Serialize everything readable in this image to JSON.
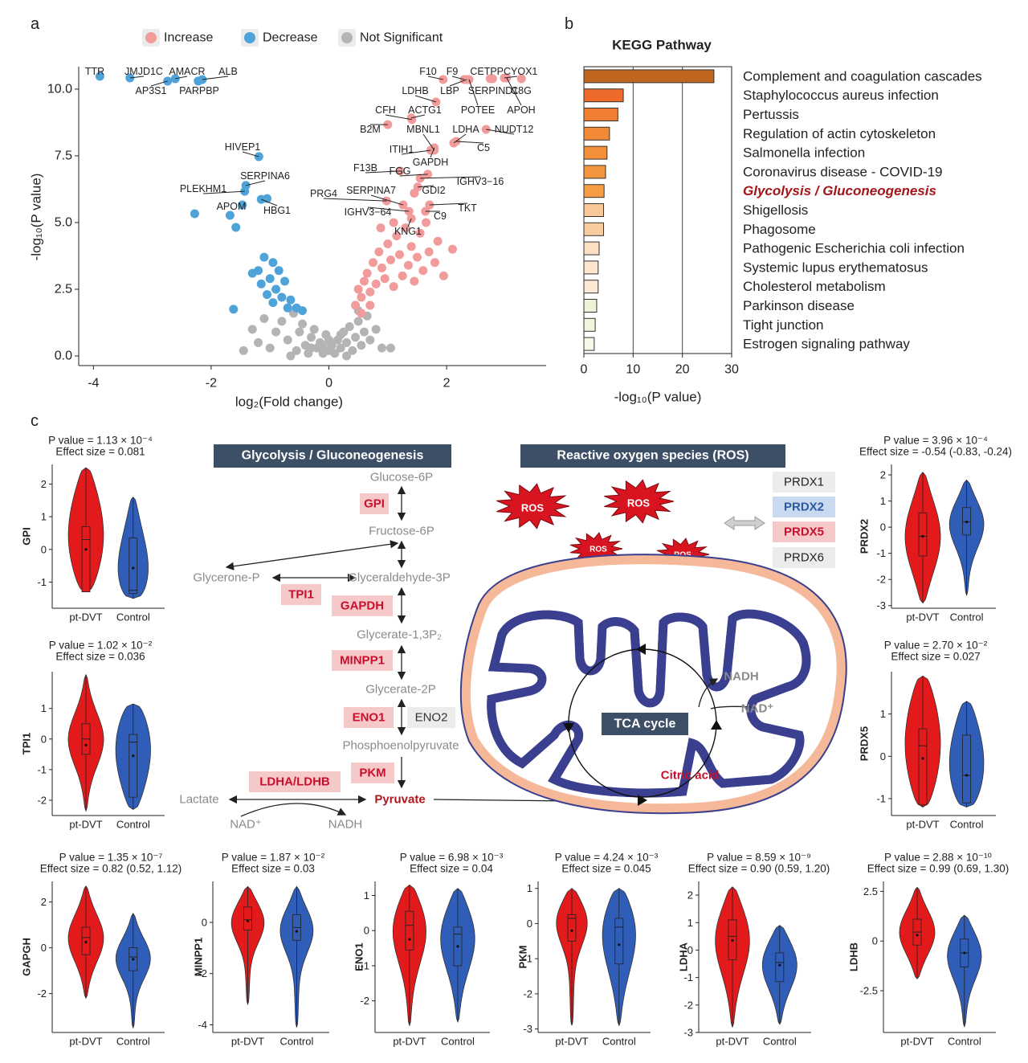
{
  "panel_labels": [
    "a",
    "b",
    "c"
  ],
  "chart_data": [
    {
      "type": "scatter",
      "xlabel": "log₂(Fold change)",
      "ylabel": "-log₁₀(P value)",
      "xlim": [
        -4.25,
        3.69
      ],
      "ylim": [
        -0.36,
        10.84
      ],
      "xticks": [
        -4,
        -2,
        0,
        2
      ],
      "yticks": [
        {
          "value": 0,
          "label": "0.0"
        },
        {
          "value": 2.5,
          "label": "2.5"
        },
        {
          "value": 5,
          "label": "5.0"
        },
        {
          "value": 7.5,
          "label": "7.5"
        },
        {
          "value": 10,
          "label": "10.0"
        }
      ],
      "legend": "top",
      "grid": false,
      "series": [
        {
          "name": "Increase",
          "color": "#f29b9b",
          "x": [
            1.94,
            2.3,
            2.34,
            2.38,
            2.74,
            2.78,
            2.98,
            3.02,
            3.27,
            1.82,
            1.41,
            1.4,
            1.0,
            1.79,
            2.12,
            2.67,
            2.16,
            1.73,
            1.79,
            1.21,
            1.68,
            1.55,
            1.51,
            0.98,
            1.26,
            1.71,
            1.36,
            1.64,
            1.4,
            0.45,
            0.5,
            0.55,
            0.6,
            0.65,
            0.7,
            0.75,
            0.8,
            0.85,
            0.9,
            0.95,
            1.0,
            1.05,
            1.1,
            1.15,
            1.2,
            1.25,
            1.3,
            1.35,
            1.4,
            1.45,
            1.5,
            1.55,
            1.6,
            1.65,
            1.7,
            1.8,
            1.85,
            1.95,
            2.1,
            0.55,
            0.7,
            1.1,
            0.88,
            1.45
          ],
          "values": [
            10.36,
            10.36,
            10.36,
            10.36,
            10.39,
            10.39,
            10.42,
            10.42,
            10.39,
            9.52,
            8.86,
            8.92,
            8.67,
            7.71,
            7.98,
            8.49,
            8.04,
            7.71,
            7.8,
            6.93,
            6.81,
            6.66,
            6.33,
            5.81,
            5.66,
            5.66,
            5.42,
            5.42,
            5.15,
            1.9,
            2.5,
            2.2,
            2.8,
            3.1,
            2.4,
            3.5,
            2.7,
            3.9,
            3.3,
            2.9,
            4.2,
            3.6,
            2.6,
            4.5,
            3.8,
            3.0,
            4.8,
            3.4,
            4.1,
            2.8,
            3.7,
            4.6,
            3.2,
            5.0,
            3.9,
            3.5,
            4.3,
            3.0,
            4.0,
            1.6,
            1.9,
            5.0,
            4.8,
            6.1
          ],
          "labels": [
            "F10",
            "F9",
            "LBP",
            "POTEE",
            "CETP",
            "SERPIND1",
            "PCYOX1",
            "APOH",
            "C8G",
            "LDHB",
            "CFH",
            "ACTG1",
            "B2M",
            "MBNL1",
            "LDHA",
            "NUDT12",
            "C5",
            "ITIH1",
            "GAPDH",
            "F13B",
            "FGG",
            "IGHV3−16",
            "GDI2",
            "PRG4",
            "SERPINA7",
            "TKT",
            "IGHV3−64",
            "C9",
            "KNG1",
            null,
            null,
            null,
            null,
            null,
            null,
            null,
            null,
            null,
            null,
            null,
            null,
            null,
            null,
            null,
            null,
            null,
            null,
            null,
            null,
            null,
            null,
            null,
            null,
            null,
            null,
            null,
            null,
            null,
            null,
            null,
            null,
            null,
            null,
            null
          ]
        },
        {
          "name": "Decrease",
          "color": "#4ea3d8",
          "x": [
            -3.89,
            -3.38,
            -2.61,
            -2.15,
            -2.74,
            -2.22,
            -1.19,
            -1.41,
            -1.43,
            -1.47,
            -1.15,
            -2.28,
            -1.68,
            -1.58,
            -1.62,
            -1.1,
            -0.95,
            -0.85,
            -1.2,
            -1.0,
            -0.75,
            -0.9,
            -1.3,
            -0.8,
            -0.65,
            -0.55,
            -0.95,
            -1.05,
            -0.7,
            -0.45,
            -1.15,
            -1.05
          ],
          "values": [
            10.48,
            10.42,
            10.39,
            10.36,
            10.3,
            10.3,
            7.47,
            6.39,
            6.17,
            5.66,
            5.87,
            5.33,
            5.27,
            4.82,
            1.75,
            3.7,
            3.5,
            3.2,
            3.2,
            2.9,
            2.8,
            2.5,
            3.1,
            2.2,
            2.1,
            1.8,
            2.0,
            2.3,
            1.8,
            1.7,
            2.7,
            5.9
          ],
          "labels": [
            "TTR",
            "JMJD1C",
            "AMACR",
            "ALB",
            "AP3S1",
            "PARPBP",
            "HIVEP1",
            "SERPINA6",
            "PLEKHM1",
            "APOM",
            "HBG1",
            null,
            null,
            null,
            null,
            null,
            null,
            null,
            null,
            null,
            null,
            null,
            null,
            null,
            null,
            null,
            null,
            null,
            null,
            null,
            null,
            null
          ]
        },
        {
          "name": "Not Significant",
          "color": "#b4b4b4",
          "x": [
            -1.2,
            -1.0,
            -0.9,
            -0.8,
            -0.7,
            -0.6,
            -0.55,
            -0.5,
            -0.45,
            -0.4,
            -0.35,
            -0.3,
            -0.25,
            -0.2,
            -0.15,
            -0.1,
            -0.05,
            0,
            0.05,
            0.1,
            0.15,
            0.2,
            0.25,
            0.3,
            0.35,
            0.4,
            0.45,
            0.5,
            0.55,
            0.6,
            0.65,
            0.7,
            0.8,
            0.9,
            -1.3,
            -0.65,
            0.0,
            -0.3,
            0.2,
            -0.1,
            0.3,
            1.05,
            -1.45,
            -1.1,
            0.5
          ],
          "values": [
            0.5,
            0.3,
            0.9,
            1.3,
            0.6,
            1.6,
            0.2,
            0.9,
            1.2,
            0.4,
            0.1,
            0.7,
            1.0,
            0.3,
            0.5,
            0.1,
            0.8,
            0.2,
            0.4,
            0.1,
            0.6,
            0.3,
            0.9,
            0.5,
            1.1,
            0.2,
            0.7,
            1.3,
            0.4,
            0.9,
            1.5,
            0.6,
            1.0,
            0.3,
            1.0,
            0.0,
            0.6,
            0.3,
            0.8,
            0.4,
            0.0,
            0.3,
            0.2,
            1.4,
            1.7
          ]
        }
      ]
    },
    {
      "type": "barh",
      "title": "KEGG Pathway",
      "xlabel": "-log₁₀(P value)",
      "xlim": [
        0,
        30
      ],
      "xticks": [
        0,
        10,
        20,
        30
      ],
      "grid": true,
      "categories": [
        "Complement and coagulation cascades",
        "Staphylococcus aureus infection",
        "Pertussis",
        "Regulation of actin cytoskeleton",
        "Salmonella infection",
        "Coronavirus disease - COVID-19",
        "Glycolysis / Gluconeogenesis",
        "Shigellosis",
        "Phagosome",
        "Pathogenic Escherichia coli infection",
        "Systemic lupus erythematosus",
        "Cholesterol metabolism",
        "Parkinson disease",
        "Tight junction",
        "Estrogen signaling pathway"
      ],
      "values": [
        26.4,
        8.0,
        6.9,
        5.2,
        4.7,
        4.4,
        4.1,
        4.0,
        4.0,
        3.1,
        2.9,
        2.9,
        2.6,
        2.3,
        2.1
      ],
      "colors": [
        "#c0651d",
        "#ee6a2b",
        "#f07f31",
        "#f28a35",
        "#f28f38",
        "#f3963d",
        "#f59d45",
        "#f8c898",
        "#f9cc9f",
        "#fde0c4",
        "#fde5ce",
        "#fde8d4",
        "#eef3d6",
        "#f2f5de",
        "#f7f8ea"
      ],
      "highlight": {
        "index": 6,
        "color": "#a3161a"
      }
    },
    {
      "type": "violin",
      "title": "P value = 1.13 × 10⁻⁴",
      "subtitle": "Effect size = 0.081",
      "ylabel": "GPI",
      "categories": [
        "pt-DVT",
        "Control"
      ],
      "colors": [
        "#e31a1c",
        "#2f5db8"
      ],
      "ylim": [
        -1.8,
        2.6
      ],
      "yticks": [
        -1,
        0,
        1,
        2
      ],
      "stats": [
        {
          "min": -1.3,
          "q1": -1.3,
          "median": 0.3,
          "q3": 0.7,
          "max": 2.5,
          "mean": 0
        },
        {
          "min": -1.5,
          "q1": -1.35,
          "median": -1.25,
          "q3": 0.35,
          "max": 1.6,
          "mean": -0.57
        }
      ]
    },
    {
      "type": "violin",
      "title": "P value = 1.02 × 10⁻²",
      "subtitle": "Effect size = 0.036",
      "ylabel": "TPI1",
      "categories": [
        "pt-DVT",
        "Control"
      ],
      "colors": [
        "#e31a1c",
        "#2f5db8"
      ],
      "ylim": [
        -2.5,
        2.2
      ],
      "yticks": [
        -2,
        -1,
        0,
        1
      ],
      "stats": [
        {
          "min": -2.35,
          "q1": -0.5,
          "median": 0,
          "q3": 0.5,
          "max": 2.1,
          "mean": -0.2
        },
        {
          "min": -2.3,
          "q1": -1.9,
          "median": -0.1,
          "q3": 0.15,
          "max": 1.15,
          "mean": -0.55
        }
      ]
    },
    {
      "type": "violin",
      "title": "P value = 3.96 × 10⁻⁴",
      "subtitle": "Effect size = -0.54 (-0.83, -0.24)",
      "ylabel": "PRDX2",
      "categories": [
        "pt-DVT",
        "Control"
      ],
      "colors": [
        "#e31a1c",
        "#2f5db8"
      ],
      "ylim": [
        -3.1,
        2.4
      ],
      "yticks": [
        -3,
        -2,
        -1,
        0,
        1,
        2
      ],
      "stats": [
        {
          "min": -2.9,
          "q1": -1.1,
          "median": -0.35,
          "q3": 0.55,
          "max": 2.1,
          "mean": -0.35
        },
        {
          "min": -2.6,
          "q1": -0.3,
          "median": 0.2,
          "q3": 0.75,
          "max": 1.8,
          "mean": 0.2
        }
      ]
    },
    {
      "type": "violin",
      "title": "P value = 2.70 × 10⁻²",
      "subtitle": "Effect size = 0.027",
      "ylabel": "PRDX5",
      "categories": [
        "pt-DVT",
        "Control"
      ],
      "colors": [
        "#e31a1c",
        "#2f5db8"
      ],
      "ylim": [
        -1.4,
        2.0
      ],
      "yticks": [
        -1,
        0,
        1
      ],
      "stats": [
        {
          "min": -1.2,
          "q1": -1.15,
          "median": 0.25,
          "q3": 0.65,
          "max": 1.9,
          "mean": -0.05
        },
        {
          "min": -1.2,
          "q1": -1.1,
          "median": -0.45,
          "q3": 0.5,
          "max": 1.3,
          "mean": -0.45
        }
      ]
    },
    {
      "type": "violin",
      "title": "P value = 1.35 × 10⁻⁷",
      "subtitle": "Effect size = 0.82 (0.52, 1.12)",
      "ylabel": "GAPGH",
      "categories": [
        "pt-DVT",
        "Control"
      ],
      "colors": [
        "#e31a1c",
        "#2f5db8"
      ],
      "ylim": [
        -3.7,
        2.9
      ],
      "yticks": [
        -2,
        0,
        2
      ],
      "stats": [
        {
          "min": -2.2,
          "q1": -0.3,
          "median": 0.45,
          "q3": 0.9,
          "max": 2.7,
          "mean": 0.25
        },
        {
          "min": -3.5,
          "q1": -1,
          "median": -0.4,
          "q3": 0,
          "max": 1.5,
          "mean": -0.5
        }
      ]
    },
    {
      "type": "violin",
      "title": "P value = 1.87 × 10⁻²",
      "subtitle": "Effect size = 0.03",
      "ylabel": "MINPP1",
      "categories": [
        "pt-DVT",
        "Control"
      ],
      "colors": [
        "#e31a1c",
        "#2f5db8"
      ],
      "ylim": [
        -4.3,
        1.6
      ],
      "yticks": [
        -4,
        -2,
        0
      ],
      "stats": [
        {
          "min": -3.2,
          "q1": -0.3,
          "median": 0.1,
          "q3": 0.6,
          "max": 1.4,
          "mean": 0.05
        },
        {
          "min": -4.1,
          "q1": -0.7,
          "median": -0.2,
          "q3": 0.3,
          "max": 1.4,
          "mean": -0.35
        }
      ]
    },
    {
      "type": "violin",
      "title": "P value = 6.98 × 10⁻³",
      "subtitle": "Effect size = 0.04",
      "ylabel": "ENO1",
      "categories": [
        "pt-DVT",
        "Control"
      ],
      "colors": [
        "#e31a1c",
        "#2f5db8"
      ],
      "ylim": [
        -2.9,
        1.4
      ],
      "yticks": [
        -2,
        -1,
        0,
        1
      ],
      "stats": [
        {
          "min": -2.7,
          "q1": -0.55,
          "median": 0.15,
          "q3": 0.55,
          "max": 1.3,
          "mean": -0.25
        },
        {
          "min": -2.6,
          "q1": -1,
          "median": -0.1,
          "q3": 0.1,
          "max": 1.2,
          "mean": -0.45
        }
      ]
    },
    {
      "type": "violin",
      "title": "P value = 4.24 × 10⁻³",
      "subtitle": "Effect size = 0.045",
      "ylabel": "PKM",
      "categories": [
        "pt-DVT",
        "Control"
      ],
      "colors": [
        "#e31a1c",
        "#2f5db8"
      ],
      "ylim": [
        -3.1,
        1.2
      ],
      "yticks": [
        -3,
        -2,
        -1,
        0,
        1
      ],
      "stats": [
        {
          "min": -2.9,
          "q1": -0.5,
          "median": 0.15,
          "q3": 0.25,
          "max": 1,
          "mean": -0.2
        },
        {
          "min": -2.9,
          "q1": -1.15,
          "median": -0.1,
          "q3": 0.15,
          "max": 1,
          "mean": -0.6
        }
      ]
    },
    {
      "type": "violin",
      "title": "P value = 8.59 × 10⁻⁹",
      "subtitle": "Effect size = 0.90 (0.59, 1.20)",
      "ylabel": "LDHA",
      "categories": [
        "pt-DVT",
        "Control"
      ],
      "colors": [
        "#e31a1c",
        "#2f5db8"
      ],
      "ylim": [
        -3,
        2.5
      ],
      "yticks": [
        -3,
        -2,
        -1,
        0,
        1,
        2
      ],
      "stats": [
        {
          "min": -2.8,
          "q1": -0.35,
          "median": 0.5,
          "q3": 1.1,
          "max": 2.3,
          "mean": 0.35
        },
        {
          "min": -2.7,
          "q1": -1.15,
          "median": -0.45,
          "q3": -0.1,
          "max": 0.9,
          "mean": -0.55
        }
      ]
    },
    {
      "type": "violin",
      "title": "P value = 2.88 × 10⁻¹⁰",
      "subtitle": "Effect size = 0.99 (0.69, 1.30)",
      "ylabel": "LDHB",
      "categories": [
        "pt-DVT",
        "Control"
      ],
      "colors": [
        "#e31a1c",
        "#2f5db8"
      ],
      "ylim": [
        -4.6,
        3.0
      ],
      "yticks": [
        -2.5,
        0,
        2.5
      ],
      "stats": [
        {
          "min": -1.9,
          "q1": -0.2,
          "median": 0.45,
          "q3": 1.1,
          "max": 2.7,
          "mean": 0.3
        },
        {
          "min": -4.3,
          "q1": -1.3,
          "median": -0.6,
          "q3": 0.1,
          "max": 1.3,
          "mean": -0.6
        }
      ]
    }
  ],
  "diagram": {
    "glycolysis": {
      "title": "Glycolysis / Gluconeogenesis",
      "metabolites": [
        "Glucose-6P",
        "Fructose-6P",
        "Glycerone-P",
        "Glyceraldehyde-3P",
        "Glycerate-1,3P₂",
        "Glycerate-2P",
        "Phosphoenolpyruvate",
        "Pyruvate",
        "Lactate"
      ],
      "enzymes": [
        "GPI",
        "TPI1",
        "GAPDH",
        "MINPP1",
        "ENO1",
        "ENO2",
        "PKM",
        "LDHA/LDHB"
      ],
      "cofactors": [
        "NAD⁺",
        "NADH"
      ]
    },
    "ros": {
      "title": "Reactive oxygen species (ROS)",
      "bursts": [
        "ROS",
        "ROS",
        "ROS",
        "ROS"
      ],
      "proteins": [
        "PRDX1",
        "PRDX2",
        "PRDX5",
        "PRDX6"
      ]
    },
    "mitochondrion": {
      "cycle": "TCA cycle",
      "outputs": [
        "NADH",
        "NAD⁺"
      ],
      "citric_acid": "Citric acid"
    }
  }
}
